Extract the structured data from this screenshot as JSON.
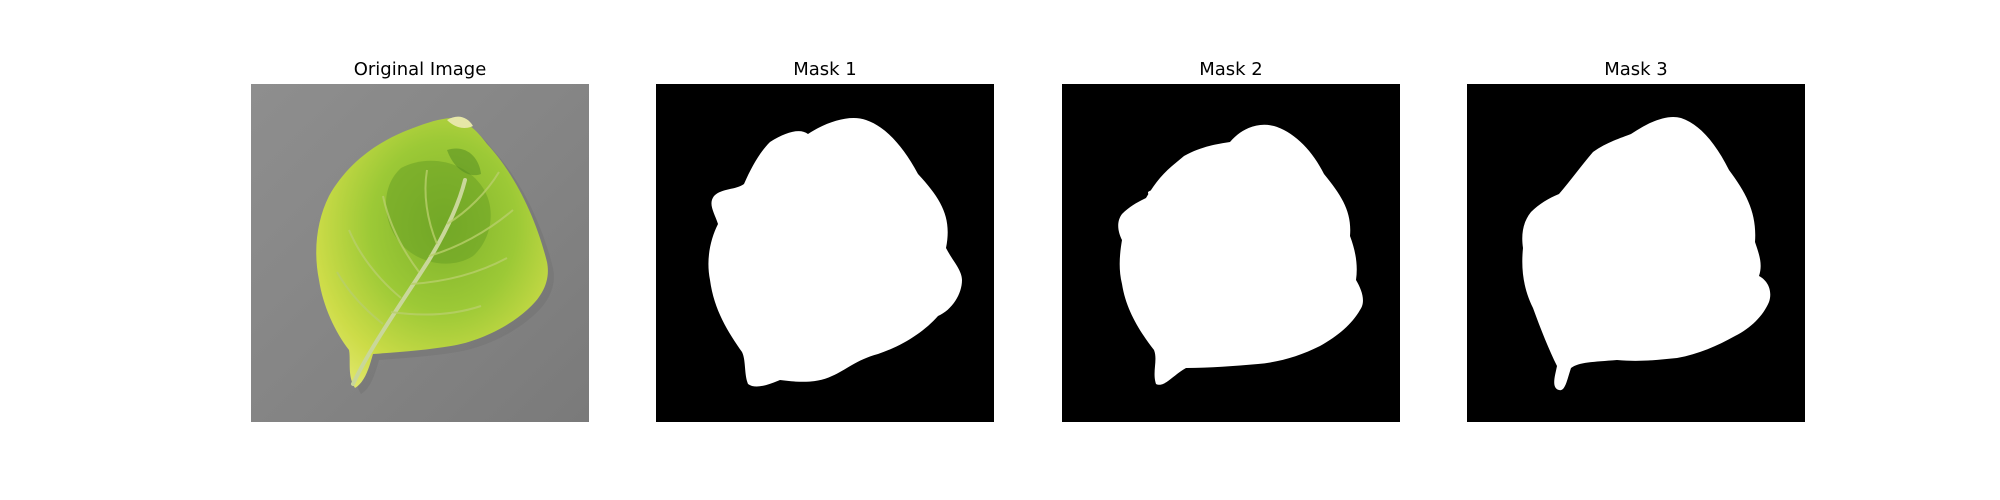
{
  "figure": {
    "panels": [
      {
        "title": "Original Image"
      },
      {
        "title": "Mask 1"
      },
      {
        "title": "Mask 2"
      },
      {
        "title": "Mask 3"
      }
    ]
  },
  "colors": {
    "background": "#ffffff",
    "mask_background": "#000000",
    "mask_foreground": "#ffffff",
    "photo_backdrop": "#8a8a8a",
    "leaf_yellow": "#d7e04a",
    "leaf_green": "#7fb22b",
    "leaf_dark_green": "#4f8a1f"
  }
}
